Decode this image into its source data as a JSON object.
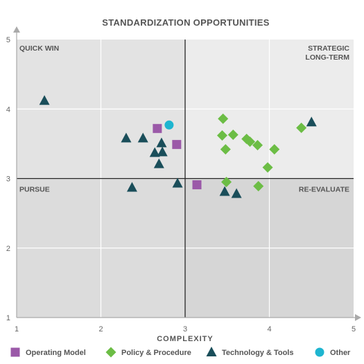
{
  "chart_data": {
    "type": "scatter",
    "title": "STANDARDIZATION OPPORTUNITIES",
    "xlabel": "COMPLEXITY",
    "ylabel": "",
    "xlim": [
      1,
      5
    ],
    "ylim": [
      1,
      5
    ],
    "xticks": [
      1,
      2,
      3,
      4,
      5
    ],
    "yticks": [
      1,
      2,
      3,
      4,
      5
    ],
    "grid": true,
    "legend_position": "bottom",
    "quadrants": [
      {
        "name": "top-left",
        "label": [
          "QUICK WIN"
        ],
        "color": "#e3e3e3"
      },
      {
        "name": "top-right",
        "label": [
          "STRATEGIC",
          "LONG-TERM"
        ],
        "color": "#ececec"
      },
      {
        "name": "bottom-left",
        "label": [
          "PURSUE"
        ],
        "color": "#dcdcdc"
      },
      {
        "name": "bottom-right",
        "label": [
          "RE-EVALUATE"
        ],
        "color": "#d6d6d6"
      }
    ],
    "divider": {
      "x": 3,
      "y": 3
    },
    "series": [
      {
        "name": "Operating Model",
        "marker": "square",
        "color": "#9b59a8",
        "points": [
          [
            2.67,
            3.72
          ],
          [
            2.9,
            3.49
          ],
          [
            3.14,
            2.91
          ]
        ]
      },
      {
        "name": "Policy & Procedure",
        "marker": "diamond",
        "color": "#6cbd45",
        "points": [
          [
            3.45,
            3.86
          ],
          [
            3.44,
            3.62
          ],
          [
            3.57,
            3.63
          ],
          [
            3.48,
            3.42
          ],
          [
            3.73,
            3.57
          ],
          [
            3.77,
            3.53
          ],
          [
            3.86,
            3.48
          ],
          [
            4.06,
            3.42
          ],
          [
            3.98,
            3.16
          ],
          [
            4.38,
            3.73
          ],
          [
            3.49,
            2.95
          ],
          [
            3.87,
            2.89
          ]
        ]
      },
      {
        "name": "Technology & Tools",
        "marker": "triangle",
        "color": "#1a4e5a",
        "points": [
          [
            1.33,
            4.12
          ],
          [
            2.3,
            3.58
          ],
          [
            2.5,
            3.58
          ],
          [
            2.72,
            3.51
          ],
          [
            2.64,
            3.37
          ],
          [
            2.73,
            3.38
          ],
          [
            2.69,
            3.21
          ],
          [
            2.37,
            2.87
          ],
          [
            2.91,
            2.93
          ],
          [
            3.47,
            2.81
          ],
          [
            3.61,
            2.78
          ],
          [
            4.5,
            3.81
          ]
        ]
      },
      {
        "name": "Other",
        "marker": "circle",
        "color": "#1eb5d0",
        "points": [
          [
            2.81,
            3.77
          ]
        ]
      }
    ]
  }
}
